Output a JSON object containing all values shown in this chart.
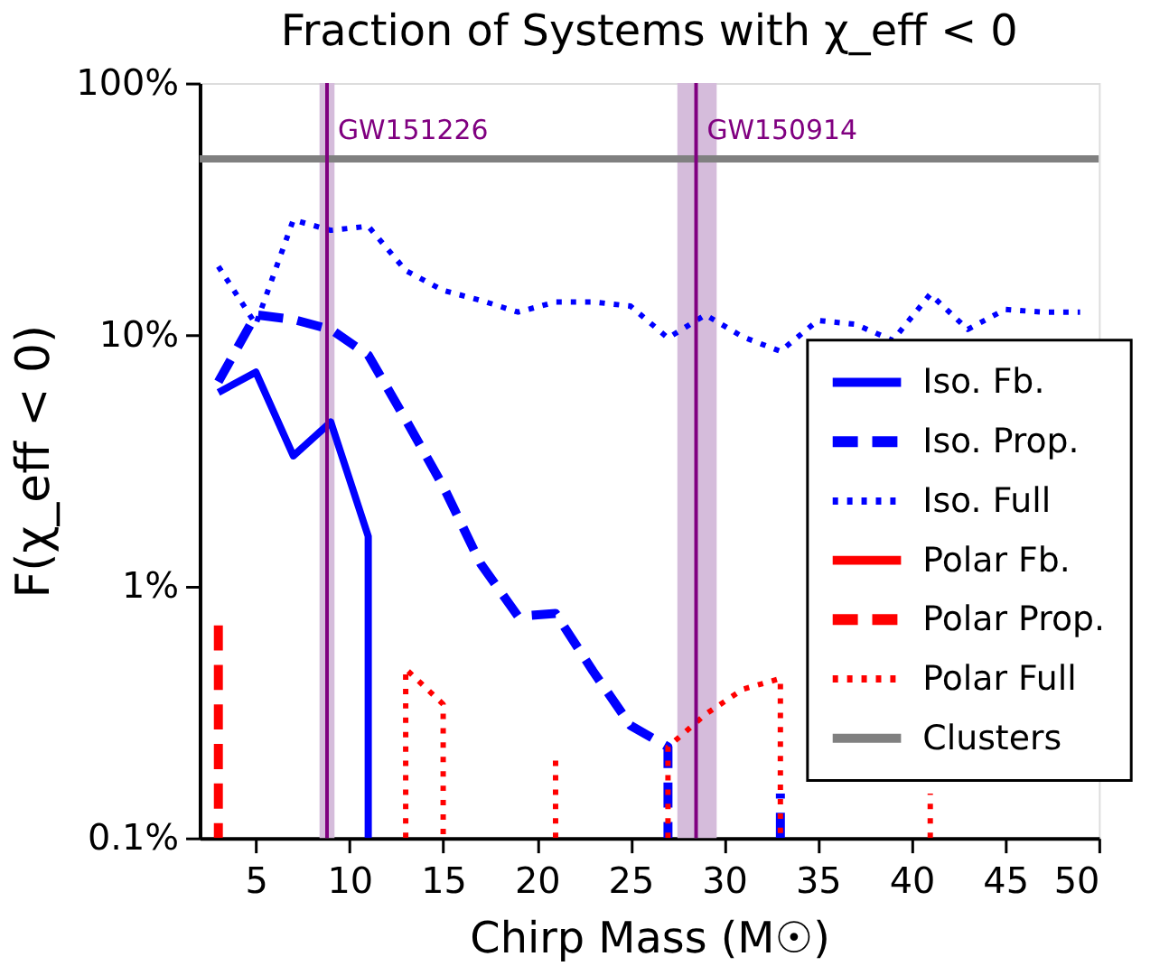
{
  "chart_data": {
    "type": "line",
    "title": "Fraction of Systems with χ_eff < 0",
    "xlabel": "Chirp Mass (M☉)",
    "ylabel": "F(χ_eff < 0)",
    "xlim": [
      2,
      50
    ],
    "xticks": [
      5,
      10,
      15,
      20,
      25,
      30,
      35,
      40,
      45,
      50
    ],
    "ylim": [
      0.1,
      100
    ],
    "yticks": [
      {
        "value": 0.1,
        "label": "0.1%"
      },
      {
        "value": 1,
        "label": "1%"
      },
      {
        "value": 10,
        "label": "10%"
      },
      {
        "value": 100,
        "label": "100%"
      }
    ],
    "log": "y",
    "grid": false,
    "legend": "bottom right",
    "marker": "none",
    "series": [
      {
        "name": "Iso. Fb.",
        "color": "#0000ff",
        "line_style": "solid",
        "x": [
          3,
          5,
          7,
          9,
          11,
          11
        ],
        "values": [
          5.9,
          7.1,
          3.3,
          4.5,
          1.58,
          0.1
        ]
      },
      {
        "name": "Iso. Prop.",
        "color": "#0000ff",
        "line_style": "dashed",
        "x": [
          3,
          5,
          7,
          9,
          11,
          13,
          15,
          17,
          19,
          21,
          23,
          25,
          27,
          27,
          29,
          33,
          33
        ],
        "values": [
          6.5,
          12,
          11.5,
          10.5,
          8.3,
          4.6,
          2.5,
          1.23,
          0.76,
          0.78,
          0.46,
          0.28,
          0.23,
          0.1,
          null,
          0.1,
          0.15
        ]
      },
      {
        "name": "Iso. Full",
        "color": "#0000ff",
        "line_style": "dotted",
        "x": [
          3,
          5,
          7,
          9,
          11,
          13,
          15,
          17,
          19,
          21,
          23,
          25,
          27,
          29,
          31,
          33,
          35,
          37,
          39,
          41,
          43,
          45,
          47,
          49
        ],
        "values": [
          18.7,
          11,
          28.6,
          26,
          27,
          18,
          15,
          13.7,
          12.3,
          13.5,
          13.5,
          13,
          9.7,
          12,
          9.8,
          8.6,
          11.4,
          11,
          9.5,
          14.5,
          10.5,
          12.6,
          12.3,
          12.3
        ]
      },
      {
        "name": "Polar Fb.",
        "color": "#ff0000",
        "line_style": "solid"
      },
      {
        "name": "Polar Prop.",
        "color": "#ff0000",
        "line_style": "dashed",
        "x": [
          3,
          3
        ],
        "values": [
          0.7,
          0.1
        ]
      },
      {
        "name": "Polar Full",
        "color": "#ff0000",
        "line_style": "dotted",
        "x": [
          13,
          13,
          15,
          15,
          17,
          21,
          21,
          23,
          27,
          27,
          29,
          31,
          33,
          33,
          37,
          41,
          41
        ],
        "values": [
          0.1,
          0.47,
          0.34,
          0.1,
          null,
          0.1,
          0.21,
          null,
          0.1,
          0.23,
          0.31,
          0.39,
          0.43,
          0.1,
          null,
          0.1,
          0.15
        ]
      },
      {
        "name": "Clusters",
        "color": "#808080",
        "line_style": "solid",
        "x": [
          2,
          50
        ],
        "values": [
          50,
          50
        ]
      }
    ],
    "ref_lines": [
      {
        "axis": "x",
        "value": 8.8,
        "label": "GW151226",
        "color": "#800080"
      },
      {
        "axis": "x",
        "value": 28.5,
        "label": "GW150914",
        "color": "#800080"
      }
    ],
    "bands": [
      {
        "axis": "x",
        "from": 8.4,
        "to": 9.2,
        "color": "#d5bcdb"
      },
      {
        "axis": "x",
        "from": 27.5,
        "to": 29.6,
        "color": "#d5bcdb"
      }
    ]
  }
}
